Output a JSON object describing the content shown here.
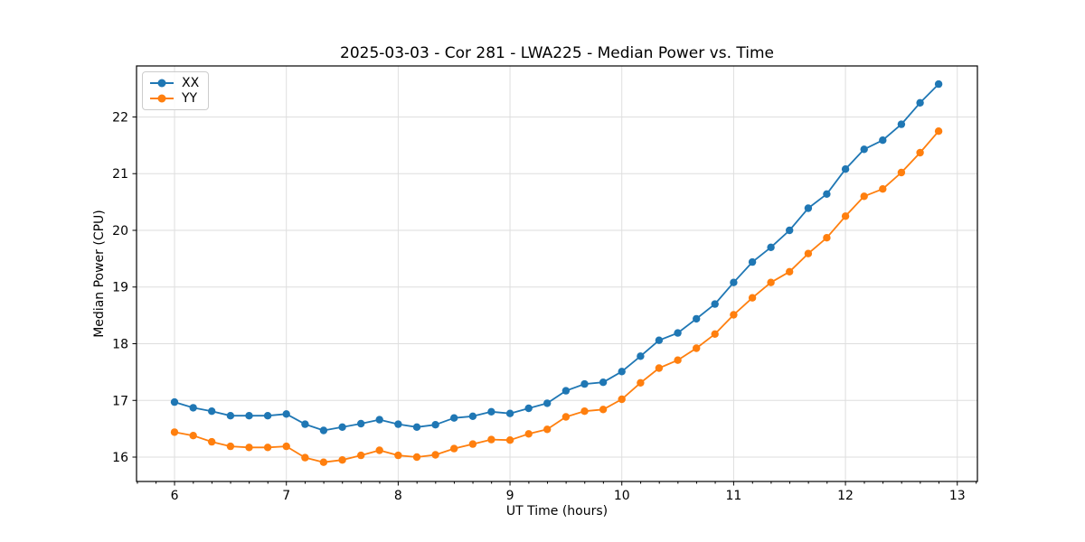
{
  "chart_data": {
    "type": "line",
    "title": "2025-03-03 - Cor 281 - LWA225 - Median Power vs. Time",
    "xlabel": "UT Time (hours)",
    "ylabel": "Median Power (CPU)",
    "xlim": [
      5.66,
      13.18
    ],
    "ylim": [
      15.57,
      22.9
    ],
    "xticks": [
      6,
      7,
      8,
      9,
      10,
      11,
      12,
      13
    ],
    "yticks": [
      16,
      17,
      18,
      19,
      20,
      21,
      22
    ],
    "x_minor_tick_step": 0.1667,
    "grid": true,
    "grid_color": "#dedede",
    "legend_position": "upper left",
    "x": [
      6.0,
      6.167,
      6.333,
      6.5,
      6.667,
      6.833,
      7.0,
      7.167,
      7.333,
      7.5,
      7.667,
      7.833,
      8.0,
      8.167,
      8.333,
      8.5,
      8.667,
      8.833,
      9.0,
      9.167,
      9.333,
      9.5,
      9.667,
      9.833,
      10.0,
      10.167,
      10.333,
      10.5,
      10.667,
      10.833,
      11.0,
      11.167,
      11.333,
      11.5,
      11.667,
      11.833,
      12.0,
      12.167,
      12.333,
      12.5,
      12.667,
      12.833
    ],
    "series": [
      {
        "name": "XX",
        "color": "#1f77b4",
        "values": [
          16.97,
          16.87,
          16.81,
          16.73,
          16.73,
          16.73,
          16.76,
          16.58,
          16.47,
          16.53,
          16.59,
          16.66,
          16.58,
          16.53,
          16.57,
          16.69,
          16.72,
          16.8,
          16.77,
          16.86,
          16.95,
          17.17,
          17.29,
          17.32,
          17.51,
          17.78,
          18.06,
          18.19,
          18.44,
          18.7,
          19.08,
          19.44,
          19.7,
          20.0,
          20.39,
          20.64,
          21.08,
          21.43,
          21.59,
          21.87,
          22.25,
          22.58
        ]
      },
      {
        "name": "YY",
        "color": "#ff7f0e",
        "values": [
          16.44,
          16.38,
          16.27,
          16.19,
          16.17,
          16.17,
          16.19,
          15.99,
          15.91,
          15.95,
          16.03,
          16.12,
          16.03,
          16.0,
          16.04,
          16.15,
          16.23,
          16.31,
          16.3,
          16.41,
          16.49,
          16.71,
          16.81,
          16.84,
          17.02,
          17.31,
          17.57,
          17.71,
          17.92,
          18.17,
          18.51,
          18.81,
          19.08,
          19.27,
          19.59,
          19.87,
          20.25,
          20.6,
          20.73,
          21.02,
          21.37,
          21.75
        ]
      }
    ]
  }
}
